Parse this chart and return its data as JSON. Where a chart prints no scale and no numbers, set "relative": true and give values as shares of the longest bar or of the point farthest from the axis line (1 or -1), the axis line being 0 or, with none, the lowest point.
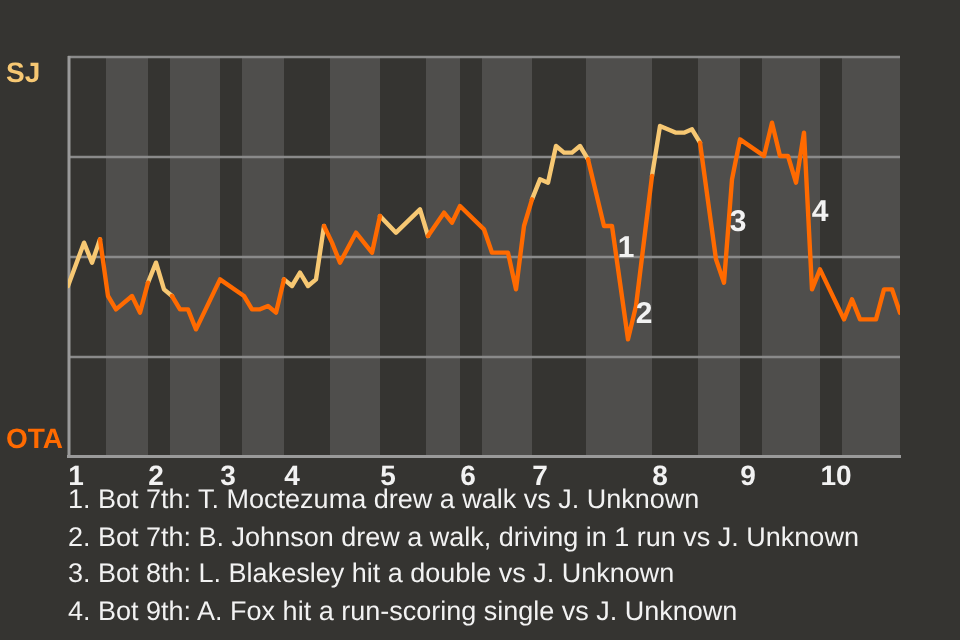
{
  "chart_data": {
    "type": "line",
    "relative": true,
    "categories": [
      null,
      "1",
      null,
      null,
      null,
      null,
      null,
      null,
      null,
      null,
      null,
      "2",
      null,
      null,
      null,
      null,
      null,
      null,
      null,
      null,
      "3",
      null,
      null,
      null,
      null,
      null,
      null,
      null,
      "4",
      null,
      null,
      null,
      null,
      null,
      null,
      null,
      null,
      null,
      null,
      null,
      "5",
      null,
      null,
      null,
      null,
      null,
      null,
      null,
      null,
      null,
      "6",
      null,
      null,
      null,
      null,
      null,
      null,
      null,
      null,
      "7",
      null,
      null,
      null,
      null,
      null,
      null,
      null,
      null,
      null,
      null,
      null,
      null,
      null,
      null,
      "8",
      null,
      null,
      null,
      null,
      null,
      null,
      null,
      null,
      null,
      null,
      "9",
      null,
      null,
      null,
      null,
      null,
      null,
      null,
      null,
      null,
      null,
      "10",
      null,
      null,
      null,
      null,
      null,
      null,
      null,
      null
    ],
    "series": [
      {
        "name": "OTA",
        "color": "#ff6a00",
        "values": [
          null,
          null,
          null,
          null,
          0.65,
          0.48,
          0.44,
          null,
          0.48,
          0.43,
          0.52,
          null,
          null,
          0.48,
          0.44,
          0.44,
          0.38,
          null,
          null,
          0.53,
          null,
          null,
          0.48,
          0.44,
          0.44,
          0.45,
          0.43,
          0.53,
          null,
          null,
          null,
          null,
          0.69,
          0.64,
          0.58,
          null,
          0.67,
          null,
          0.61,
          0.72,
          null,
          null,
          null,
          null,
          null,
          0.66,
          null,
          0.73,
          0.7,
          0.75,
          null,
          null,
          0.68,
          0.61,
          null,
          0.61,
          0.5,
          0.69,
          0.77,
          null,
          null,
          null,
          null,
          null,
          null,
          0.89,
          null,
          0.69,
          0.69,
          0.52,
          0.35,
          0.45,
          null,
          0.84,
          null,
          null,
          null,
          null,
          null,
          0.94,
          null,
          0.59,
          0.52,
          0.83,
          0.95,
          null,
          null,
          0.9,
          1,
          0.9,
          0.9,
          0.82,
          0.97,
          0.5,
          0.56,
          null,
          null,
          0.41,
          0.47,
          0.41,
          null,
          0.41,
          0.5,
          0.5,
          0.43
        ]
      },
      {
        "name": "SJ",
        "color": "#f7c873",
        "values": [
          0.51,
          null,
          0.64,
          0.58,
          0.65,
          null,
          null,
          null,
          null,
          null,
          0.52,
          0.58,
          0.5,
          0.48,
          null,
          null,
          null,
          null,
          null,
          null,
          null,
          null,
          null,
          null,
          null,
          null,
          null,
          0.53,
          0.51,
          0.55,
          0.51,
          0.53,
          0.69,
          null,
          null,
          null,
          null,
          null,
          null,
          0.72,
          null,
          0.67,
          null,
          null,
          0.74,
          0.66,
          null,
          null,
          null,
          null,
          null,
          null,
          null,
          null,
          null,
          null,
          null,
          null,
          0.77,
          0.83,
          0.82,
          0.93,
          0.91,
          0.91,
          0.93,
          0.89,
          null,
          null,
          null,
          null,
          null,
          null,
          null,
          0.84,
          0.99,
          null,
          0.97,
          0.97,
          0.98,
          0.94,
          null,
          null,
          null,
          null,
          null,
          null,
          null,
          null,
          null,
          null,
          null,
          null,
          null,
          null,
          null,
          null,
          null,
          null,
          null,
          null,
          null,
          null,
          null,
          null,
          null
        ]
      }
    ],
    "grid": true,
    "marker": "none",
    "annotations": [
      "1",
      "2",
      "3",
      "4",
      "1. Bot 7th: T. Moctezuma drew a walk vs J. Unknown",
      "2. Bot 7th: B. Johnson drew a walk, driving in 1 run vs J. Unknown",
      "3. Bot 8th: L. Blakesley hit a double vs J. Unknown",
      "4. Bot 9th: A. Fox hit a run-scoring single vs J. Unknown"
    ]
  }
}
